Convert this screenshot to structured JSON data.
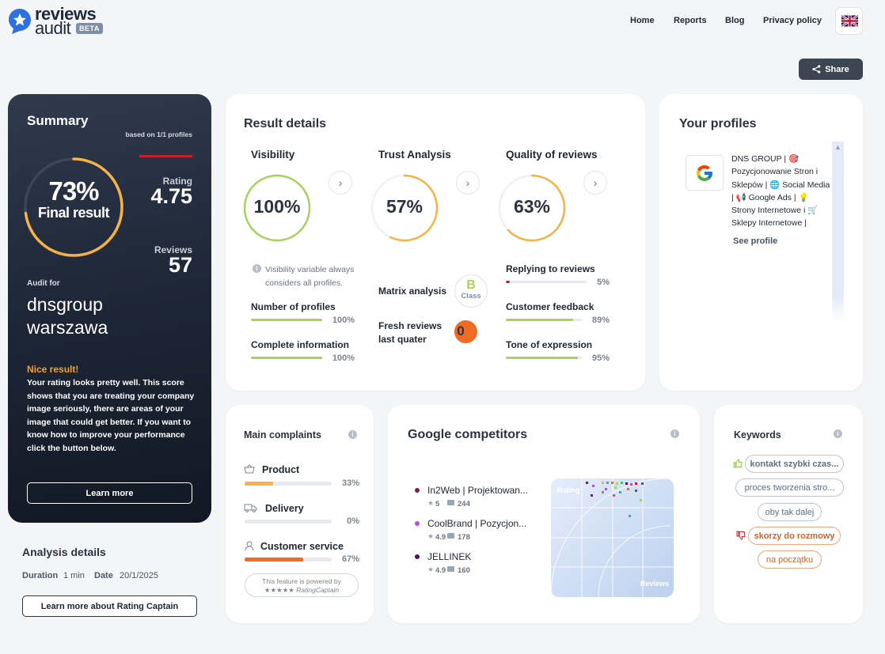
{
  "brand": {
    "name_top": "reviews",
    "name_bottom": "audit",
    "badge": "BETA"
  },
  "nav": {
    "items": [
      "Home",
      "Reports",
      "Blog",
      "Privacy policy"
    ],
    "language": "EN"
  },
  "share_label": "Share",
  "summary": {
    "title": "Summary",
    "based_on": "based on 1/1 profiles",
    "percent": "73%",
    "final_label": "Final result",
    "percent_value": 73,
    "rating_label": "Rating",
    "rating_value": "4.75",
    "reviews_label": "Reviews",
    "reviews_value": "57",
    "audit_for": "Audit for",
    "company_line1": "dnsgroup",
    "company_line2": "warszawa",
    "nice": "Nice result!",
    "description": "Your rating looks pretty well. This score shows that you are treating your company image seriously, there are areas of your image that could get better. If you want to know how to improve your performance click the button below.",
    "learn_more": "Learn more"
  },
  "analysis": {
    "title": "Analysis details",
    "duration_label": "Duration",
    "duration_value": "1 min",
    "date_label": "Date",
    "date_value": "20/1/2025",
    "rc_button": "Learn more about Rating Captain"
  },
  "result": {
    "title": "Result details",
    "visibility": {
      "title": "Visibility",
      "percent": "100%",
      "value": 100,
      "note": "Visibility variable always considers all profiles.",
      "metrics": [
        {
          "label": "Number of profiles",
          "pct": "100%",
          "value": 100
        },
        {
          "label": "Complete information",
          "pct": "100%",
          "value": 100
        }
      ]
    },
    "trust": {
      "title": "Trust Analysis",
      "percent": "57%",
      "value": 57,
      "matrix_label": "Matrix analysis",
      "class_letter": "B",
      "class_word": "Class",
      "fresh_label": "Fresh reviews last quater",
      "fresh_value": "0"
    },
    "quality": {
      "title": "Quality of reviews",
      "percent": "63%",
      "value": 63,
      "metrics": [
        {
          "label": "Replying to reviews",
          "pct": "5%",
          "value": 5
        },
        {
          "label": "Customer feedback",
          "pct": "89%",
          "value": 89
        },
        {
          "label": "Tone of expression",
          "pct": "95%",
          "value": 95
        }
      ]
    }
  },
  "profiles": {
    "title": "Your profiles",
    "name": "DNS GROUP | 🎯 Pozycjonowanie Stron i Sklepów | 🌐 Social Media | 📢 Google Ads | 💡 Strony Internetowe i 🛒 Sklepy Internetowe |",
    "see_profile": "See profile"
  },
  "complaints": {
    "title": "Main complaints",
    "items": [
      {
        "label": "Product",
        "pct": "33%",
        "value": 33,
        "color": "#f7b245",
        "icon": "basket-icon"
      },
      {
        "label": "Delivery",
        "pct": "0%",
        "value": 0,
        "color": "#f7b245",
        "icon": "truck-icon"
      },
      {
        "label": "Customer service",
        "pct": "67%",
        "value": 67,
        "color": "#f26b22",
        "icon": "person-icon"
      }
    ],
    "powered_line1": "This feature is powered by",
    "powered_line2": "★★★★★ RatingCaptain"
  },
  "competitors": {
    "title": "Google competitors",
    "items": [
      {
        "name": "In2Web | Projektowan...",
        "rating": "5",
        "reviews": "244",
        "color": "#7b1f4a"
      },
      {
        "name": "CoolBrand | Pozycjon...",
        "rating": "4.9",
        "reviews": "178",
        "color": "#c04ae0"
      },
      {
        "name": "JELLINEK",
        "rating": "4.9",
        "reviews": "160",
        "color": "#4a0f5e"
      }
    ],
    "chart_y_label": "Rating",
    "chart_x_label": "Reviews"
  },
  "keywords": {
    "title": "Keywords",
    "positive": [
      "kontakt szybki czas...",
      "proces tworzenia stro...",
      "oby tak dalej"
    ],
    "negative": [
      "skorzy do rozmowy",
      "na początku"
    ]
  }
}
